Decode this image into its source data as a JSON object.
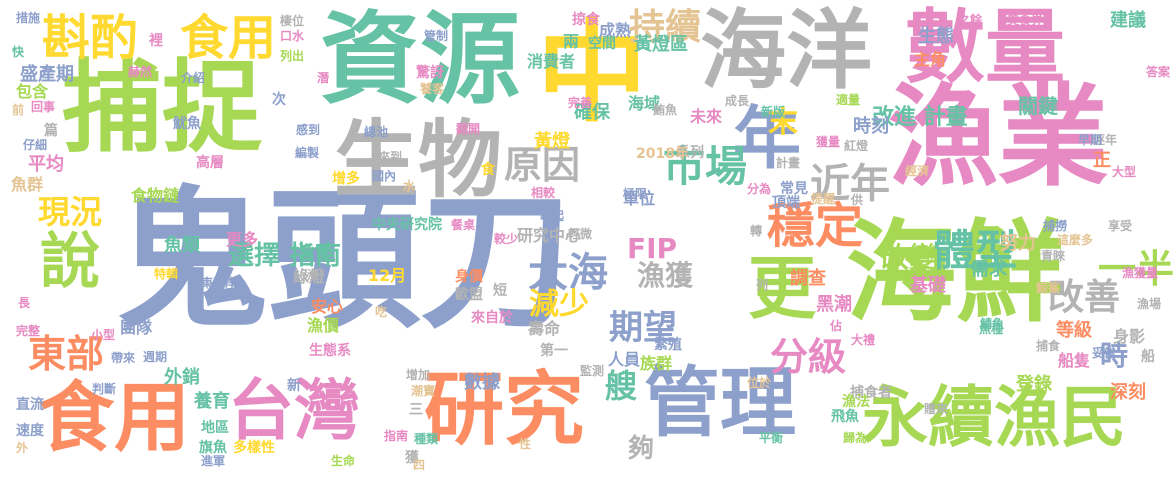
{
  "palette": {
    "green": "#a6d854",
    "teal": "#66c2a5",
    "orange": "#fc8d62",
    "blue": "#8da0cb",
    "pink": "#e78ac3",
    "yellow": "#ffd92f",
    "gray": "#b3b3b3",
    "tan": "#e5c494"
  },
  "words": [
    {
      "text": "鬼頭刀",
      "color": "#8da0cb",
      "orientation": "horizontal"
    },
    {
      "text": "捕捉",
      "color": "#a6d854",
      "orientation": "horizontal"
    },
    {
      "text": "資源",
      "color": "#66c2a5",
      "orientation": "horizontal"
    },
    {
      "text": "中",
      "color": "#ffd92f",
      "orientation": "horizontal"
    },
    {
      "text": "海洋",
      "color": "#b3b3b3",
      "orientation": "horizontal"
    },
    {
      "text": "數量",
      "color": "#e78ac3",
      "orientation": "horizontal"
    },
    {
      "text": "漁業",
      "color": "#e78ac3",
      "orientation": "horizontal"
    },
    {
      "text": "海鮮",
      "color": "#a6d854",
      "orientation": "horizontal"
    },
    {
      "text": "生物",
      "color": "#b3b3b3",
      "orientation": "horizontal"
    },
    {
      "text": "年",
      "color": "#8da0cb",
      "orientation": "horizontal"
    },
    {
      "text": "食用",
      "color": "#fc8d62",
      "orientation": "horizontal"
    },
    {
      "text": "台灣",
      "color": "#e78ac3",
      "orientation": "horizontal"
    },
    {
      "text": "研究",
      "color": "#fc8d62",
      "orientation": "horizontal"
    },
    {
      "text": "管理",
      "color": "#8da0cb",
      "orientation": "horizontal"
    },
    {
      "text": "永續漁民",
      "color": "#a6d854",
      "orientation": "horizontal"
    },
    {
      "text": "斟酌",
      "color": "#ffd92f",
      "orientation": "horizontal"
    },
    {
      "text": "食用",
      "color": "#ffd92f",
      "orientation": "horizontal"
    },
    {
      "text": "持續",
      "color": "#e5c494",
      "orientation": "horizontal"
    },
    {
      "text": "說",
      "color": "#a6d854",
      "orientation": "horizontal"
    },
    {
      "text": "更",
      "color": "#a6d854",
      "orientation": "horizontal"
    },
    {
      "text": "穩定",
      "color": "#fc8d62",
      "orientation": "horizontal"
    },
    {
      "text": "體型",
      "color": "#66c2a5",
      "orientation": "horizontal"
    },
    {
      "text": "原因",
      "color": "#b3b3b3",
      "orientation": "horizontal"
    },
    {
      "text": "市場",
      "color": "#66c2a5",
      "orientation": "horizontal"
    },
    {
      "text": "近年",
      "color": "#b3b3b3",
      "orientation": "horizontal"
    },
    {
      "text": "大海",
      "color": "#8da0cb",
      "orientation": "horizontal"
    },
    {
      "text": "現況",
      "color": "#ffd92f",
      "orientation": "horizontal"
    },
    {
      "text": "東部",
      "color": "#fc8d62",
      "orientation": "horizontal"
    },
    {
      "text": "一半",
      "color": "#a6d854",
      "orientation": "horizontal"
    },
    {
      "text": "改善",
      "color": "#b3b3b3",
      "orientation": "horizontal"
    },
    {
      "text": "分級",
      "color": "#e78ac3",
      "orientation": "horizontal"
    },
    {
      "text": "期望",
      "color": "#8da0cb",
      "orientation": "horizontal"
    },
    {
      "text": "減少",
      "color": "#ffd92f",
      "orientation": "horizontal"
    },
    {
      "text": "漁獲",
      "color": "#b3b3b3",
      "orientation": "horizontal"
    },
    {
      "text": "改變",
      "color": "#a6d854",
      "orientation": "horizontal"
    },
    {
      "text": "選擇 指南",
      "color": "#66c2a5",
      "orientation": "horizontal"
    },
    {
      "text": "改進 計畫",
      "color": "#66c2a5",
      "orientation": "horizontal"
    },
    {
      "text": "FIP",
      "color": "#e78ac3",
      "orientation": "horizontal"
    },
    {
      "text": "時",
      "color": "#8da0cb",
      "orientation": "horizontal"
    },
    {
      "text": "末",
      "color": "#ffd92f",
      "orientation": "horizontal"
    },
    {
      "text": "艘",
      "color": "#66c2a5",
      "orientation": "horizontal"
    },
    {
      "text": "夠",
      "color": "#b3b3b3",
      "orientation": "horizontal"
    },
    {
      "text": "建議",
      "color": "#66c2a5",
      "orientation": "horizontal"
    },
    {
      "text": "生態",
      "color": "#8da0cb",
      "orientation": "horizontal"
    },
    {
      "text": "主角",
      "color": "#fc8d62",
      "orientation": "horizontal"
    },
    {
      "text": "關鍵",
      "color": "#66c2a5",
      "orientation": "horizontal"
    },
    {
      "text": "時刻",
      "color": "#8da0cb",
      "orientation": "horizontal"
    },
    {
      "text": "黃燈區",
      "color": "#66c2a5",
      "orientation": "horizontal"
    },
    {
      "text": "消費者",
      "color": "#66c2a5",
      "orientation": "horizontal"
    },
    {
      "text": "成熟",
      "color": "#8da0cb",
      "orientation": "horizontal"
    },
    {
      "text": "空間",
      "color": "#66c2a5",
      "orientation": "horizontal"
    },
    {
      "text": "兩",
      "color": "#66c2a5",
      "orientation": "horizontal"
    },
    {
      "text": "確保",
      "color": "#66c2a5",
      "orientation": "horizontal"
    },
    {
      "text": "海域",
      "color": "#66c2a5",
      "orientation": "horizontal"
    },
    {
      "text": "黃燈",
      "color": "#ffd92f",
      "orientation": "horizontal"
    },
    {
      "text": "未來",
      "color": "#e78ac3",
      "orientation": "horizontal"
    },
    {
      "text": "研究中心",
      "color": "#b3b3b3",
      "orientation": "horizontal"
    },
    {
      "text": "數據",
      "color": "#8da0cb",
      "orientation": "horizontal"
    },
    {
      "text": "族群",
      "color": "#a6d854",
      "orientation": "horizontal"
    },
    {
      "text": "人員",
      "color": "#8da0cb",
      "orientation": "horizontal"
    },
    {
      "text": "壽命",
      "color": "#b3b3b3",
      "orientation": "horizontal"
    },
    {
      "text": "盛產期",
      "color": "#8da0cb",
      "orientation": "horizontal"
    },
    {
      "text": "包含",
      "color": "#a6d854",
      "orientation": "horizontal"
    },
    {
      "text": "平均",
      "color": "#e78ac3",
      "orientation": "horizontal"
    },
    {
      "text": "魚群",
      "color": "#e5c494",
      "orientation": "horizontal"
    },
    {
      "text": "食物鏈",
      "color": "#a6d854",
      "orientation": "horizontal"
    },
    {
      "text": "魚類",
      "color": "#66c2a5",
      "orientation": "horizontal"
    },
    {
      "text": "更多",
      "color": "#e78ac3",
      "orientation": "horizontal"
    },
    {
      "text": "綠燈",
      "color": "#b3b3b3",
      "orientation": "horizontal"
    },
    {
      "text": "安心",
      "color": "#fc8d62",
      "orientation": "horizontal"
    },
    {
      "text": "漁價",
      "color": "#a6d854",
      "orientation": "horizontal"
    },
    {
      "text": "團隊",
      "color": "#8da0cb",
      "orientation": "horizontal"
    },
    {
      "text": "外銷",
      "color": "#66c2a5",
      "orientation": "horizontal"
    },
    {
      "text": "養育",
      "color": "#66c2a5",
      "orientation": "horizontal"
    },
    {
      "text": "黑潮",
      "color": "#e78ac3",
      "orientation": "horizontal"
    },
    {
      "text": "登錄",
      "color": "#a6d854",
      "orientation": "horizontal"
    },
    {
      "text": "深刻",
      "color": "#fc8d62",
      "orientation": "horizontal"
    },
    {
      "text": "等級",
      "color": "#fc8d62",
      "orientation": "horizontal"
    },
    {
      "text": "需求",
      "color": "#66c2a5",
      "orientation": "horizontal"
    },
    {
      "text": "基礎",
      "color": "#e78ac3",
      "orientation": "horizontal"
    },
    {
      "text": "調查",
      "color": "#fc8d62",
      "orientation": "horizontal"
    },
    {
      "text": "努力",
      "color": "#e5c494",
      "orientation": "horizontal"
    },
    {
      "text": "中央研究院",
      "color": "#66c2a5",
      "orientation": "horizontal"
    },
    {
      "text": "東海岸",
      "color": "#8da0cb",
      "orientation": "horizontal"
    },
    {
      "text": "12月",
      "color": "#ffd92f",
      "orientation": "horizontal"
    },
    {
      "text": "單位",
      "color": "#8da0cb",
      "orientation": "horizontal"
    },
    {
      "text": "系列",
      "color": "#b3b3b3",
      "orientation": "horizontal"
    },
    {
      "text": "2018年",
      "color": "#e5c494",
      "orientation": "horizontal"
    },
    {
      "text": "相較",
      "color": "#e78ac3",
      "orientation": "horizontal"
    },
    {
      "text": "極限",
      "color": "#8da0cb",
      "orientation": "horizontal"
    },
    {
      "text": "船隻",
      "color": "#e78ac3",
      "orientation": "horizontal"
    },
    {
      "text": "身影",
      "color": "#b3b3b3",
      "orientation": "horizontal"
    },
    {
      "text": "繁殖",
      "color": "#8da0cb",
      "orientation": "horizontal"
    },
    {
      "text": "歐盟",
      "color": "#b3b3b3",
      "orientation": "horizontal"
    },
    {
      "text": "短",
      "color": "#b3b3b3",
      "orientation": "horizontal"
    },
    {
      "text": "身價",
      "color": "#fc8d62",
      "orientation": "horizontal"
    },
    {
      "text": "來自於",
      "color": "#e78ac3",
      "orientation": "horizontal"
    },
    {
      "text": "第一",
      "color": "#b3b3b3",
      "orientation": "horizontal"
    },
    {
      "text": "捕撈",
      "color": "#8da0cb",
      "orientation": "horizontal"
    },
    {
      "text": "享受",
      "color": "#b3b3b3",
      "orientation": "horizontal"
    },
    {
      "text": "逐年",
      "color": "#b3b3b3",
      "orientation": "horizontal"
    },
    {
      "text": "早期",
      "color": "#8da0cb",
      "orientation": "horizontal"
    },
    {
      "text": "美食界",
      "color": "#e78ac3",
      "orientation": "horizontal"
    },
    {
      "text": "之餘",
      "color": "#e78ac3",
      "orientation": "horizontal"
    },
    {
      "text": "答案",
      "color": "#e78ac3",
      "orientation": "horizontal"
    },
    {
      "text": "適量",
      "color": "#a6d854",
      "orientation": "horizontal"
    },
    {
      "text": "新版",
      "color": "#66c2a5",
      "orientation": "horizontal"
    },
    {
      "text": "成長",
      "color": "#b3b3b3",
      "orientation": "horizontal"
    },
    {
      "text": "獲量",
      "color": "#e78ac3",
      "orientation": "horizontal"
    },
    {
      "text": "紅燈",
      "color": "#b3b3b3",
      "orientation": "horizontal"
    },
    {
      "text": "常見",
      "color": "#8da0cb",
      "orientation": "horizontal"
    },
    {
      "text": "頂端",
      "color": "#8da0cb",
      "orientation": "horizontal"
    },
    {
      "text": "分為",
      "color": "#e78ac3",
      "orientation": "horizontal"
    },
    {
      "text": "魚種",
      "color": "#66c2a5",
      "orientation": "horizontal"
    },
    {
      "text": "捕食",
      "color": "#b3b3b3",
      "orientation": "horizontal"
    },
    {
      "text": "捕食者",
      "color": "#b3b3b3",
      "orientation": "horizontal"
    },
    {
      "text": "漁法",
      "color": "#a6d854",
      "orientation": "horizontal"
    },
    {
      "text": "飛魚",
      "color": "#66c2a5",
      "orientation": "horizontal"
    },
    {
      "text": "歸為",
      "color": "#a6d854",
      "orientation": "horizontal"
    },
    {
      "text": "平衡",
      "color": "#66c2a5",
      "orientation": "horizontal"
    },
    {
      "text": "種類",
      "color": "#66c2a5",
      "orientation": "horizontal"
    },
    {
      "text": "多樣性",
      "color": "#ffd92f",
      "orientation": "horizontal"
    },
    {
      "text": "地區",
      "color": "#66c2a5",
      "orientation": "horizontal"
    },
    {
      "text": "旗魚",
      "color": "#66c2a5",
      "orientation": "horizontal"
    },
    {
      "text": "進軍",
      "color": "#8da0cb",
      "orientation": "horizontal"
    },
    {
      "text": "生命",
      "color": "#a6d854",
      "orientation": "horizontal"
    },
    {
      "text": "指南",
      "color": "#e78ac3",
      "orientation": "horizontal"
    },
    {
      "text": "速度",
      "color": "#8da0cb",
      "orientation": "horizontal"
    },
    {
      "text": "直流",
      "color": "#8da0cb",
      "orientation": "horizontal"
    },
    {
      "text": "判斷",
      "color": "#8da0cb",
      "orientation": "horizontal"
    },
    {
      "text": "完整",
      "color": "#e78ac3",
      "orientation": "horizontal"
    },
    {
      "text": "帶來",
      "color": "#8da0cb",
      "orientation": "horizontal"
    },
    {
      "text": "小型",
      "color": "#e78ac3",
      "orientation": "horizontal"
    },
    {
      "text": "生態系",
      "color": "#e78ac3",
      "orientation": "horizontal"
    },
    {
      "text": "週期",
      "color": "#8da0cb",
      "orientation": "horizontal"
    },
    {
      "text": "漁會",
      "color": "#66c2a5",
      "orientation": "horizontal"
    },
    {
      "text": "特輯",
      "color": "#ffd92f",
      "orientation": "horizontal"
    },
    {
      "text": "高層",
      "color": "#e78ac3",
      "orientation": "horizontal"
    },
    {
      "text": "魷魚",
      "color": "#8da0cb",
      "orientation": "horizontal"
    },
    {
      "text": "介紹",
      "color": "#8da0cb",
      "orientation": "horizontal"
    },
    {
      "text": "回事",
      "color": "#e78ac3",
      "orientation": "horizontal"
    },
    {
      "text": "仔細",
      "color": "#8da0cb",
      "orientation": "horizontal"
    },
    {
      "text": "增多",
      "color": "#ffd92f",
      "orientation": "horizontal"
    },
    {
      "text": "國內",
      "color": "#8da0cb",
      "orientation": "horizontal"
    },
    {
      "text": "餐桌",
      "color": "#e78ac3",
      "orientation": "horizontal"
    },
    {
      "text": "較少",
      "color": "#e78ac3",
      "orientation": "horizontal"
    },
    {
      "text": "崛起",
      "color": "#8da0cb",
      "orientation": "horizontal"
    },
    {
      "text": "輕微",
      "color": "#b3b3b3",
      "orientation": "horizontal"
    },
    {
      "text": "完善",
      "color": "#e78ac3",
      "orientation": "horizontal"
    },
    {
      "text": "翻開",
      "color": "#e78ac3",
      "orientation": "horizontal"
    },
    {
      "text": "驚訝",
      "color": "#e78ac3",
      "orientation": "horizontal"
    },
    {
      "text": "饕客",
      "color": "#e5c494",
      "orientation": "horizontal"
    },
    {
      "text": "總池",
      "color": "#8da0cb",
      "orientation": "horizontal"
    },
    {
      "text": "感到",
      "color": "#8da0cb",
      "orientation": "horizontal"
    },
    {
      "text": "編製",
      "color": "#8da0cb",
      "orientation": "horizontal"
    },
    {
      "text": "來到",
      "color": "#b3b3b3",
      "orientation": "horizontal"
    },
    {
      "text": "棲位",
      "color": "#b3b3b3",
      "orientation": "horizontal"
    },
    {
      "text": "口水",
      "color": "#e78ac3",
      "orientation": "horizontal"
    },
    {
      "text": "列出",
      "color": "#a6d854",
      "orientation": "horizontal"
    },
    {
      "text": "管制",
      "color": "#8da0cb",
      "orientation": "horizontal"
    },
    {
      "text": "掠食",
      "color": "#e78ac3",
      "orientation": "horizontal"
    },
    {
      "text": "措施",
      "color": "#8da0cb",
      "orientation": "horizontal"
    },
    {
      "text": "赫然",
      "color": "#e78ac3",
      "orientation": "horizontal"
    },
    {
      "text": "快",
      "color": "#66c2a5",
      "orientation": "horizontal"
    },
    {
      "text": "前",
      "color": "#e5c494",
      "orientation": "horizontal"
    },
    {
      "text": "篇",
      "color": "#b3b3b3",
      "orientation": "horizontal"
    },
    {
      "text": "次",
      "color": "#8da0cb",
      "orientation": "horizontal"
    },
    {
      "text": "漁",
      "color": "#b3b3b3",
      "orientation": "horizontal"
    },
    {
      "text": "食",
      "color": "#ffd92f",
      "orientation": "horizontal"
    },
    {
      "text": "水",
      "color": "#e5c494",
      "orientation": "horizontal"
    },
    {
      "text": "新",
      "color": "#8da0cb",
      "orientation": "horizontal"
    },
    {
      "text": "三",
      "color": "#b3b3b3",
      "orientation": "horizontal"
    },
    {
      "text": "吃",
      "color": "#e5c494",
      "orientation": "horizontal"
    },
    {
      "text": "獲",
      "color": "#b3b3b3",
      "orientation": "horizontal"
    },
    {
      "text": "四",
      "color": "#e5c494",
      "orientation": "horizontal"
    },
    {
      "text": "長",
      "color": "#e78ac3",
      "orientation": "horizontal"
    },
    {
      "text": "外",
      "color": "#e5c494",
      "orientation": "horizontal"
    },
    {
      "text": "佔",
      "color": "#e78ac3",
      "orientation": "horizontal"
    },
    {
      "text": "供",
      "color": "#b3b3b3",
      "orientation": "horizontal"
    },
    {
      "text": "船",
      "color": "#b3b3b3",
      "orientation": "horizontal"
    },
    {
      "text": "正",
      "color": "#fc8d62",
      "orientation": "horizontal"
    },
    {
      "text": "大型",
      "color": "#e78ac3",
      "orientation": "horizontal"
    },
    {
      "text": "這麼多",
      "color": "#e5c494",
      "orientation": "horizontal"
    },
    {
      "text": "青睞",
      "color": "#b3b3b3",
      "orientation": "horizontal"
    },
    {
      "text": "漁獲量",
      "color": "#e78ac3",
      "orientation": "horizontal"
    },
    {
      "text": "妥當",
      "color": "#8da0cb",
      "orientation": "horizontal"
    },
    {
      "text": "提醒",
      "color": "#e5c494",
      "orientation": "horizontal"
    },
    {
      "text": "經濟",
      "color": "#e5c494",
      "orientation": "horizontal"
    },
    {
      "text": "位於",
      "color": "#e5c494",
      "orientation": "horizontal"
    },
    {
      "text": "監測",
      "color": "#b3b3b3",
      "orientation": "horizontal"
    },
    {
      "text": "潮寶",
      "color": "#e5c494",
      "orientation": "horizontal"
    },
    {
      "text": "增加",
      "color": "#b3b3b3",
      "orientation": "horizontal"
    },
    {
      "text": "性",
      "color": "#e5c494",
      "orientation": "horizontal"
    },
    {
      "text": "轉",
      "color": "#b3b3b3",
      "orientation": "horizontal"
    },
    {
      "text": "列",
      "color": "#b3b3b3",
      "orientation": "horizontal"
    },
    {
      "text": "大禮",
      "color": "#e78ac3",
      "orientation": "horizontal"
    },
    {
      "text": "鯖魚",
      "color": "#66c2a5",
      "orientation": "horizontal"
    },
    {
      "text": "鮪魚",
      "color": "#b3b3b3",
      "orientation": "horizontal"
    },
    {
      "text": "計畫",
      "color": "#b3b3b3",
      "orientation": "horizontal"
    },
    {
      "text": "贈來",
      "color": "#b3b3b3",
      "orientation": "horizontal"
    },
    {
      "text": "鯨鯊",
      "color": "#e5c494",
      "orientation": "horizontal"
    },
    {
      "text": "漁場",
      "color": "#b3b3b3",
      "orientation": "horizontal"
    },
    {
      "text": "潛",
      "color": "#e78ac3",
      "orientation": "horizontal"
    },
    {
      "text": "裡",
      "color": "#e78ac3",
      "orientation": "horizontal"
    }
  ]
}
